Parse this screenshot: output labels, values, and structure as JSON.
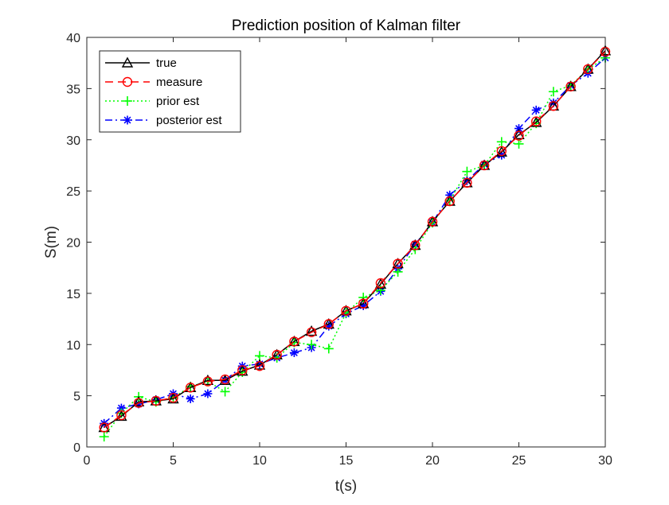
{
  "chart_data": {
    "type": "line",
    "title": "Prediction position of Kalman filter",
    "xlabel": "t(s)",
    "ylabel": "S(m)",
    "xlim": [
      0,
      30
    ],
    "ylim": [
      0,
      40
    ],
    "xticks": [
      0,
      5,
      10,
      15,
      20,
      25,
      30
    ],
    "yticks": [
      0,
      5,
      10,
      15,
      20,
      25,
      30,
      35,
      40
    ],
    "grid": false,
    "legend_position": "top-left",
    "x": [
      1,
      2,
      3,
      4,
      5,
      6,
      7,
      8,
      9,
      10,
      11,
      12,
      13,
      14,
      15,
      16,
      17,
      18,
      19,
      20,
      21,
      22,
      23,
      24,
      25,
      26,
      27,
      28,
      29,
      30
    ],
    "series": [
      {
        "name": "true",
        "color": "#000000",
        "line_style": "solid",
        "marker": "triangle",
        "values": [
          1.9,
          3.0,
          4.4,
          4.5,
          4.7,
          5.8,
          6.5,
          6.5,
          7.4,
          8.0,
          9.0,
          10.3,
          11.3,
          12.0,
          13.3,
          14.0,
          15.9,
          17.9,
          19.7,
          22.0,
          24.0,
          25.8,
          27.5,
          28.8,
          30.5,
          31.7,
          33.3,
          35.2,
          36.9,
          38.7
        ]
      },
      {
        "name": "measure",
        "color": "#ff0000",
        "line_style": "dashed",
        "marker": "circle",
        "values": [
          1.9,
          3.1,
          4.3,
          4.5,
          4.8,
          5.8,
          6.4,
          6.6,
          7.5,
          7.9,
          9.0,
          10.3,
          11.2,
          12.0,
          13.3,
          14.0,
          16.0,
          17.9,
          19.7,
          22.0,
          24.0,
          25.8,
          27.5,
          28.9,
          30.4,
          31.8,
          33.3,
          35.2,
          36.9,
          38.6
        ]
      },
      {
        "name": "prior est",
        "color": "#00ff00",
        "line_style": "dotted",
        "marker": "plus",
        "values": [
          1.0,
          3.3,
          4.9,
          4.4,
          4.8,
          5.9,
          6.4,
          5.4,
          7.3,
          8.9,
          8.7,
          10.2,
          10.0,
          9.6,
          13.1,
          14.6,
          15.3,
          17.1,
          19.3,
          21.9,
          24.1,
          26.9,
          27.5,
          29.8,
          29.6,
          31.6,
          34.7,
          35.3,
          36.9,
          38.0
        ]
      },
      {
        "name": "posterior est",
        "color": "#0000ff",
        "line_style": "dashdot",
        "marker": "asterisk",
        "values": [
          2.3,
          3.8,
          4.2,
          4.6,
          5.2,
          4.7,
          5.2,
          6.5,
          7.9,
          8.1,
          8.7,
          9.2,
          9.7,
          11.8,
          13.0,
          13.8,
          15.2,
          17.4,
          19.8,
          21.9,
          24.6,
          26.0,
          27.6,
          28.5,
          31.1,
          32.9,
          33.6,
          35.3,
          36.5,
          38.0
        ]
      }
    ]
  }
}
